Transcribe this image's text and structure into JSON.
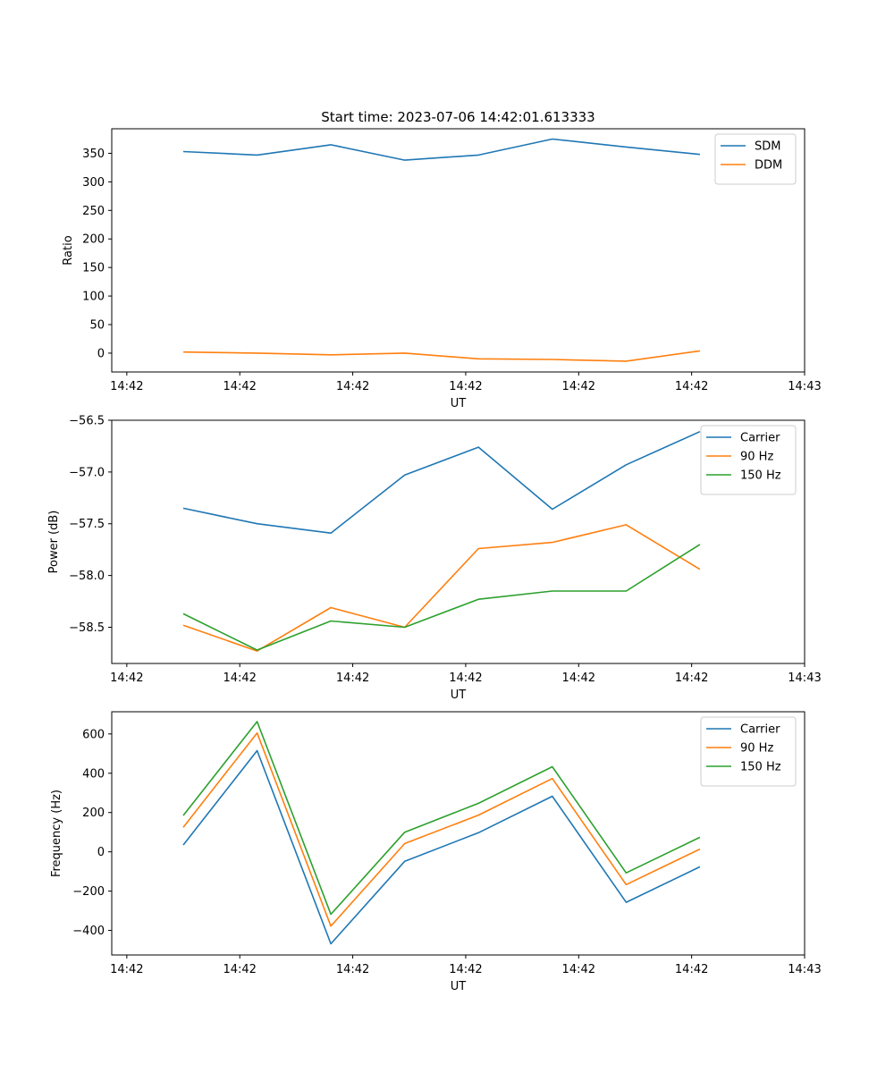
{
  "chart_data": [
    {
      "type": "line",
      "title": "Start time: 2023-07-06 14:42:01.613333",
      "xlabel": "UT",
      "ylabel": "Ratio",
      "xlim": [
        -0.2,
        9.0
      ],
      "ylim": [
        -33,
        393
      ],
      "xtick_values": [
        0,
        1.5,
        3,
        4.5,
        6,
        7.5,
        9
      ],
      "xtick_labels": [
        "14:42",
        "14:42",
        "14:42",
        "14:42",
        "14:42",
        "14:42",
        "14:43"
      ],
      "yticks": [
        0,
        50,
        100,
        150,
        200,
        250,
        300,
        350
      ],
      "ytick_labels": [
        "0",
        "50",
        "100",
        "150",
        "200",
        "250",
        "300",
        "350"
      ],
      "x": [
        0.75,
        1.73,
        2.71,
        3.69,
        4.67,
        5.65,
        6.63,
        7.61
      ],
      "legend_position": "top-right",
      "series": [
        {
          "name": "SDM",
          "color": "#1f77b4",
          "values": [
            353,
            347,
            365,
            338,
            347,
            375,
            361,
            348
          ]
        },
        {
          "name": "DDM",
          "color": "#ff7f0e",
          "values": [
            2,
            0,
            -3,
            0,
            -10,
            -11,
            -14,
            4
          ]
        }
      ]
    },
    {
      "type": "line",
      "title": "",
      "xlabel": "UT",
      "ylabel": "Power (dB)",
      "xlim": [
        -0.2,
        9.0
      ],
      "ylim": [
        -58.85,
        -56.5
      ],
      "xtick_values": [
        0,
        1.5,
        3,
        4.5,
        6,
        7.5,
        9
      ],
      "xtick_labels": [
        "14:42",
        "14:42",
        "14:42",
        "14:42",
        "14:42",
        "14:42",
        "14:43"
      ],
      "yticks": [
        -58.5,
        -58.0,
        -57.5,
        -57.0,
        -56.5
      ],
      "ytick_labels": [
        "−58.5",
        "−58.0",
        "−57.5",
        "−57.0",
        "−56.5"
      ],
      "x": [
        0.75,
        1.73,
        2.71,
        3.69,
        4.67,
        5.65,
        6.63,
        7.61
      ],
      "legend_position": "top-right",
      "series": [
        {
          "name": "Carrier",
          "color": "#1f77b4",
          "values": [
            -57.35,
            -57.5,
            -57.59,
            -57.03,
            -56.76,
            -57.36,
            -56.93,
            -56.61
          ]
        },
        {
          "name": "90 Hz",
          "color": "#ff7f0e",
          "values": [
            -58.48,
            -58.73,
            -58.31,
            -58.5,
            -57.74,
            -57.68,
            -57.51,
            -57.94
          ]
        },
        {
          "name": "150 Hz",
          "color": "#2ca02c",
          "values": [
            -58.37,
            -58.72,
            -58.44,
            -58.5,
            -58.23,
            -58.15,
            -58.15,
            -57.7
          ]
        }
      ]
    },
    {
      "type": "line",
      "title": "",
      "xlabel": "UT",
      "ylabel": "Frequency (Hz)",
      "xlim": [
        -0.2,
        9.0
      ],
      "ylim": [
        -525,
        713
      ],
      "xtick_values": [
        0,
        1.5,
        3,
        4.5,
        6,
        7.5,
        9
      ],
      "xtick_labels": [
        "14:42",
        "14:42",
        "14:42",
        "14:42",
        "14:42",
        "14:42",
        "14:43"
      ],
      "yticks": [
        -400,
        -200,
        0,
        200,
        400,
        600
      ],
      "ytick_labels": [
        "−400",
        "−200",
        "0",
        "200",
        "400",
        "600"
      ],
      "x": [
        0.75,
        1.73,
        2.71,
        3.69,
        4.67,
        5.65,
        6.63,
        7.61
      ],
      "legend_position": "top-right",
      "series": [
        {
          "name": "Carrier",
          "color": "#1f77b4",
          "values": [
            35,
            515,
            -468,
            -48,
            97,
            283,
            -257,
            -76
          ]
        },
        {
          "name": "90 Hz",
          "color": "#ff7f0e",
          "values": [
            125,
            605,
            -378,
            42,
            187,
            373,
            -167,
            14
          ]
        },
        {
          "name": "150 Hz",
          "color": "#2ca02c",
          "values": [
            185,
            663,
            -318,
            100,
            247,
            433,
            -107,
            74
          ]
        }
      ]
    }
  ]
}
